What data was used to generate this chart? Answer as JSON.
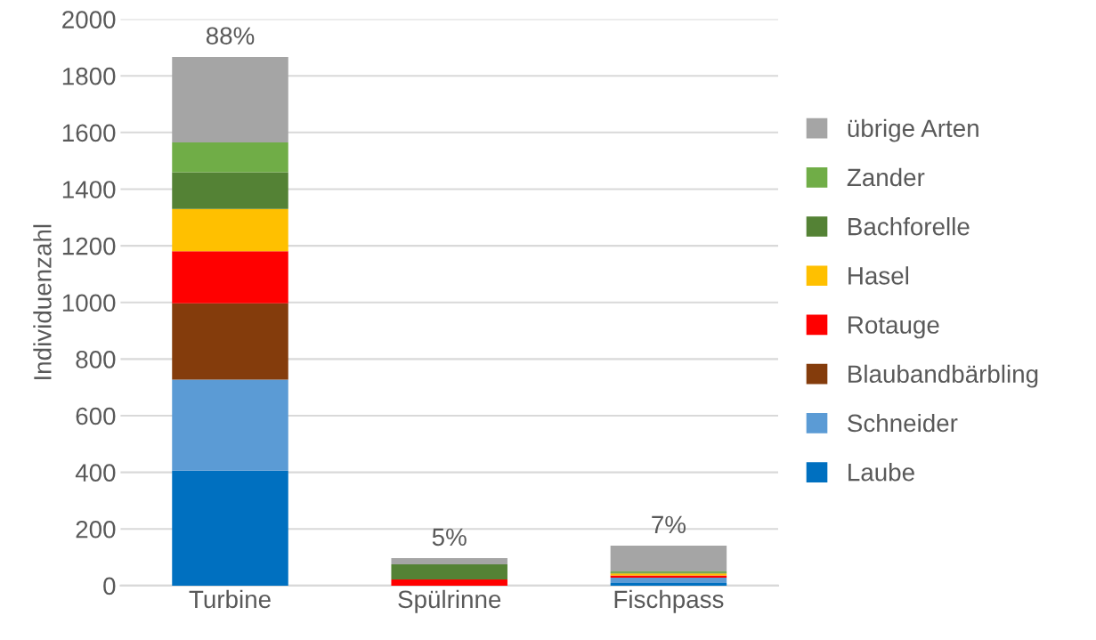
{
  "chart_data": {
    "type": "bar",
    "stacked": true,
    "ylabel": "Individuenzahl",
    "categories": [
      "Turbine",
      "Spülrinne",
      "Fischpass"
    ],
    "series": [
      {
        "name": "Laube",
        "color": "#0070c0",
        "values": [
          406,
          0,
          9
        ]
      },
      {
        "name": "Schneider",
        "color": "#5b9bd5",
        "values": [
          321,
          0,
          19
        ]
      },
      {
        "name": "Blaubandbärbling",
        "color": "#843c0c",
        "values": [
          270,
          0,
          0
        ]
      },
      {
        "name": "Rotauge",
        "color": "#ff0000",
        "values": [
          184,
          22,
          8
        ]
      },
      {
        "name": "Hasel",
        "color": "#ffc000",
        "values": [
          149,
          0,
          7
        ]
      },
      {
        "name": "Bachforelle",
        "color": "#548235",
        "values": [
          130,
          53,
          3
        ]
      },
      {
        "name": "Zander",
        "color": "#70ad47",
        "values": [
          105,
          0,
          4
        ]
      },
      {
        "name": "übrige Arten",
        "color": "#a5a5a5",
        "values": [
          302,
          22,
          91
        ]
      }
    ],
    "annotations": [
      {
        "text": "88%",
        "x": "Turbine",
        "y": 1867
      },
      {
        "text": "5%",
        "x": "Spülrinne",
        "y": 97
      },
      {
        "text": "7%",
        "x": "Fischpass",
        "y": 141
      }
    ],
    "ylim": [
      0,
      2000
    ],
    "yticks": [
      0,
      200,
      400,
      600,
      800,
      1000,
      1200,
      1400,
      1600,
      1800,
      2000
    ],
    "grid": "y",
    "legend": "right"
  }
}
